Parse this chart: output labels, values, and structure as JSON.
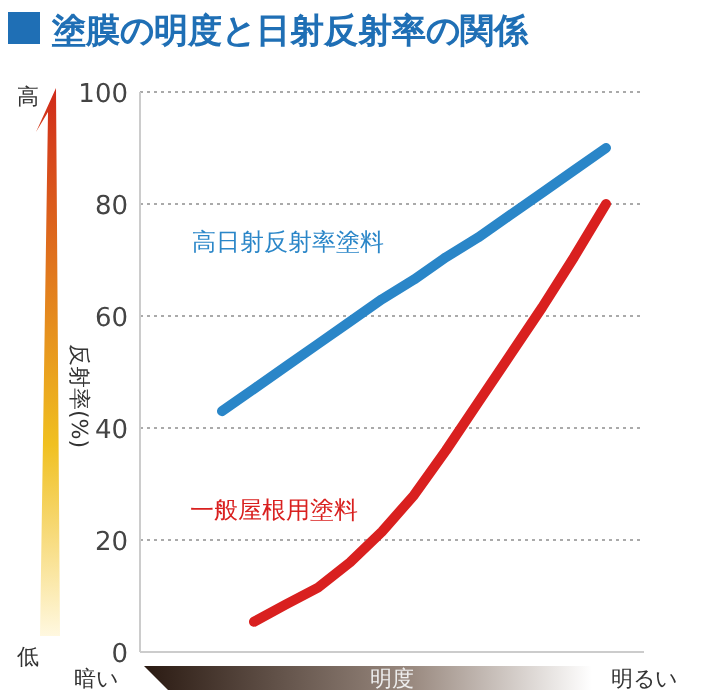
{
  "chart_data": {
    "type": "line",
    "title": "塗膜の明度と日射反射率の関係",
    "xlabel": "明度",
    "ylabel": "反射率(%)",
    "annotations": [
      "高",
      "低",
      "暗い",
      "明るい"
    ],
    "categories": [
      null,
      null,
      null,
      null,
      null,
      null,
      null,
      null,
      null,
      null,
      null,
      null,
      null
    ],
    "ylim": [
      0,
      100
    ],
    "yticks": [
      0,
      20,
      40,
      60,
      80,
      100
    ],
    "grid": "y",
    "tick_labels": "y",
    "series": [
      {
        "name": "高日射反射率塗料",
        "color": "#2a86c8",
        "values": [
          43,
          47,
          51,
          55,
          59,
          63,
          66.5,
          70.5,
          74,
          78,
          82,
          86,
          90
        ]
      },
      {
        "name": "一般屋根用塗料",
        "color": "#d9201f",
        "values": [
          null,
          5.4,
          8.5,
          11.5,
          16,
          21.5,
          28,
          36,
          44.5,
          53,
          61.5,
          70.5,
          80
        ]
      }
    ]
  }
}
